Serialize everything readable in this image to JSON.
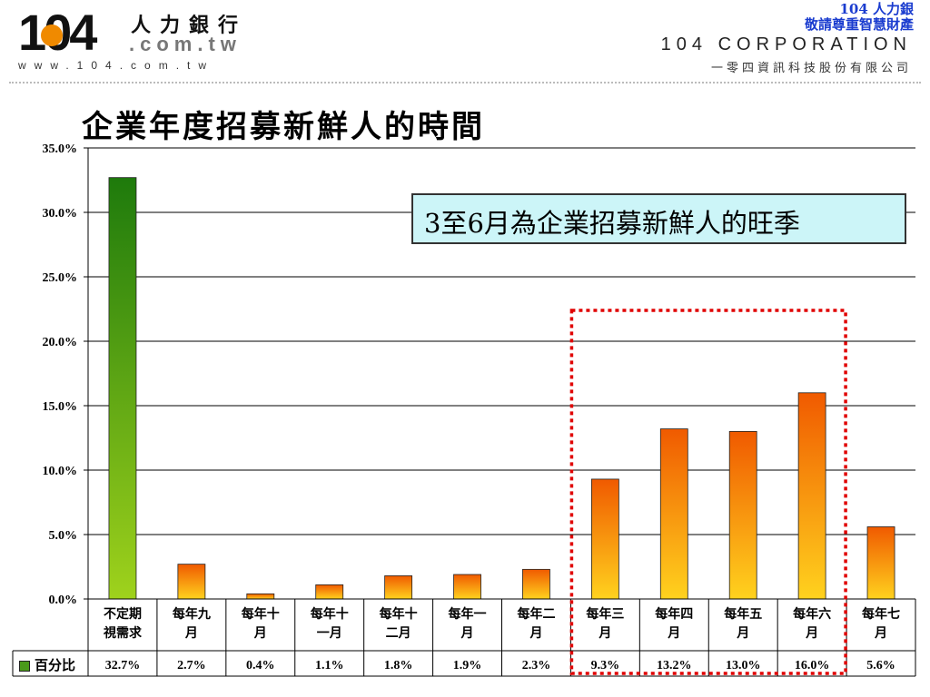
{
  "header": {
    "logo_number": "104",
    "logo_chinese": "人力銀行",
    "logo_com": ".com.tw",
    "logo_url": "www.104.com.tw",
    "slogan_line1": "104 人力銀",
    "slogan_line2": "敬請尊重智慧財產",
    "corporation": "104 CORPORATION",
    "corporation_zh": "一零四資訊科技股份有限公司"
  },
  "callout": {
    "text": "3至6月為企業招募新鮮人的旺季"
  },
  "colors": {
    "green_top": "#1e7a0c",
    "green_bottom": "#9fd21c",
    "orange_top": "#f05a00",
    "orange_bottom": "#ffd21e",
    "highlight_box": "#e00000",
    "callout_bg": "#ccf5f8"
  },
  "chart_data": {
    "type": "bar",
    "title": "企業年度招募新鮮人的時間",
    "categories": [
      [
        "不定期",
        "視需求"
      ],
      [
        "每年九",
        "月"
      ],
      [
        "每年十",
        "月"
      ],
      [
        "每年十",
        "一月"
      ],
      [
        "每年十",
        "二月"
      ],
      [
        "每年一",
        "月"
      ],
      [
        "每年二",
        "月"
      ],
      [
        "每年三",
        "月"
      ],
      [
        "每年四",
        "月"
      ],
      [
        "每年五",
        "月"
      ],
      [
        "每年六",
        "月"
      ],
      [
        "每年七",
        "月"
      ]
    ],
    "series": [
      {
        "name": "百分比",
        "values": [
          32.7,
          2.7,
          0.4,
          1.1,
          1.8,
          1.9,
          2.3,
          9.3,
          13.2,
          13.0,
          16.0,
          5.6
        ],
        "labels": [
          "32.7%",
          "2.7%",
          "0.4%",
          "1.1%",
          "1.8%",
          "1.9%",
          "2.3%",
          "9.3%",
          "13.2%",
          "13.0%",
          "16.0%",
          "5.6%"
        ]
      }
    ],
    "yticks": [
      "0.0%",
      "5.0%",
      "10.0%",
      "15.0%",
      "20.0%",
      "25.0%",
      "30.0%",
      "35.0%"
    ],
    "ylim": [
      0,
      35
    ],
    "grid": true,
    "legend": "data-table",
    "highlight_range": [
      7,
      10
    ]
  }
}
